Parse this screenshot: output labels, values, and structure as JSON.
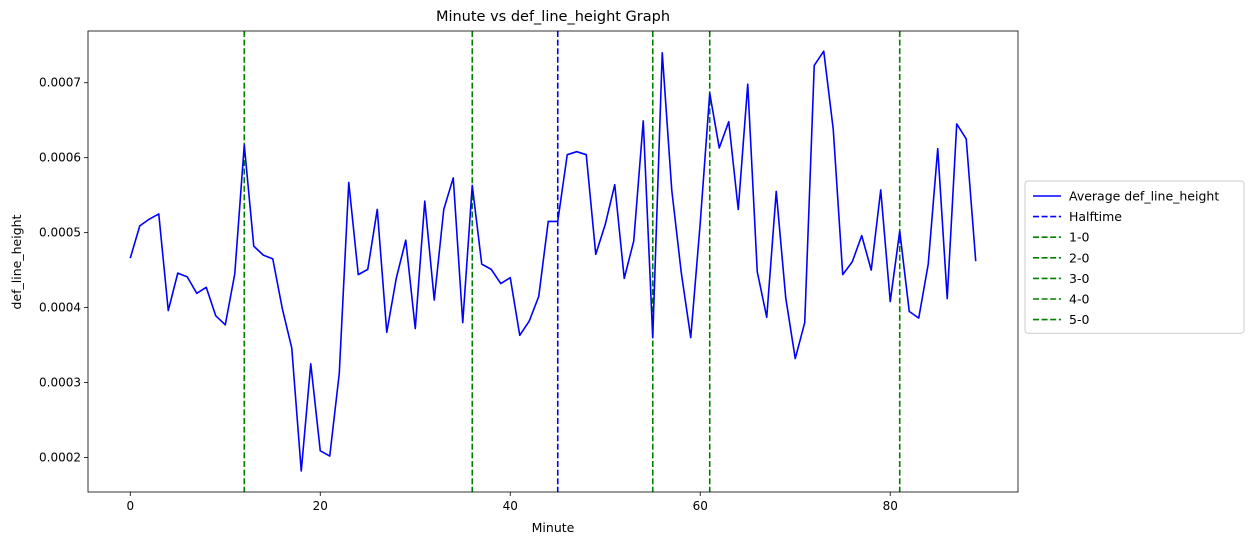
{
  "chart_data": {
    "type": "line",
    "title": "Minute vs def_line_height Graph",
    "xlabel": "Minute",
    "ylabel": "def_line_height",
    "xlim": [
      -4.45,
      93.45
    ],
    "ylim": [
      0.000154,
      0.000769
    ],
    "xticks": [
      0,
      20,
      40,
      60,
      80
    ],
    "xtick_labels": [
      "0",
      "20",
      "40",
      "60",
      "80"
    ],
    "yticks": [
      0.0002,
      0.0003,
      0.0004,
      0.0005,
      0.0006,
      0.0007
    ],
    "ytick_labels": [
      "0.0002",
      "0.0003",
      "0.0004",
      "0.0005",
      "0.0006",
      "0.0007"
    ],
    "grid": false,
    "legend_position": "right-outside",
    "series": [
      {
        "name": "Average def_line_height",
        "color": "#0000ff",
        "style": "solid",
        "x": [
          0,
          1,
          2,
          3,
          4,
          5,
          6,
          7,
          8,
          9,
          10,
          11,
          12,
          13,
          14,
          15,
          16,
          17,
          18,
          19,
          20,
          21,
          22,
          23,
          24,
          25,
          26,
          27,
          28,
          29,
          30,
          31,
          32,
          33,
          34,
          35,
          36,
          37,
          38,
          39,
          40,
          41,
          42,
          43,
          44,
          45,
          46,
          47,
          48,
          49,
          50,
          51,
          52,
          53,
          54,
          55,
          56,
          57,
          58,
          59,
          60,
          61,
          62,
          63,
          64,
          65,
          66,
          67,
          68,
          69,
          70,
          71,
          72,
          73,
          74,
          75,
          76,
          77,
          78,
          79,
          80,
          81,
          82,
          83,
          84,
          85,
          86,
          87,
          88,
          89
        ],
        "y": [
          0.000466,
          0.000509,
          0.000518,
          0.000525,
          0.000396,
          0.000446,
          0.000441,
          0.000419,
          0.000427,
          0.000389,
          0.000377,
          0.000445,
          0.000617,
          0.000482,
          0.00047,
          0.000465,
          0.000399,
          0.000346,
          0.000182,
          0.000325,
          0.000209,
          0.000202,
          0.000312,
          0.000567,
          0.000444,
          0.000451,
          0.000531,
          0.000367,
          0.000439,
          0.00049,
          0.000372,
          0.000542,
          0.00041,
          0.000531,
          0.000573,
          0.00038,
          0.000563,
          0.000458,
          0.000451,
          0.000432,
          0.00044,
          0.000363,
          0.000382,
          0.000415,
          0.000515,
          0.000515,
          0.000604,
          0.000608,
          0.000604,
          0.000471,
          0.000511,
          0.000564,
          0.000439,
          0.000489,
          0.000649,
          0.00036,
          0.00074,
          0.000557,
          0.000447,
          0.00036,
          0.000513,
          0.000686,
          0.000613,
          0.000648,
          0.000531,
          0.000698,
          0.000448,
          0.000387,
          0.000555,
          0.000413,
          0.000332,
          0.00038,
          0.000723,
          0.000742,
          0.000638,
          0.000444,
          0.000461,
          0.000496,
          0.00045,
          0.000557,
          0.000408,
          0.000502,
          0.000395,
          0.000386,
          0.000458,
          0.000612,
          0.000412,
          0.000645,
          0.000625,
          0.000462
        ]
      }
    ],
    "vlines": [
      {
        "name": "Halftime",
        "x": 45,
        "color": "#0000ff",
        "style": "dashed"
      },
      {
        "name": "1-0",
        "x": 12,
        "color": "#008000",
        "style": "dashed"
      },
      {
        "name": "2-0",
        "x": 36,
        "color": "#008000",
        "style": "dashed"
      },
      {
        "name": "3-0",
        "x": 55,
        "color": "#008000",
        "style": "dashed"
      },
      {
        "name": "4-0",
        "x": 61,
        "color": "#008000",
        "style": "dashed"
      },
      {
        "name": "5-0",
        "x": 81,
        "color": "#008000",
        "style": "dashed"
      }
    ]
  }
}
